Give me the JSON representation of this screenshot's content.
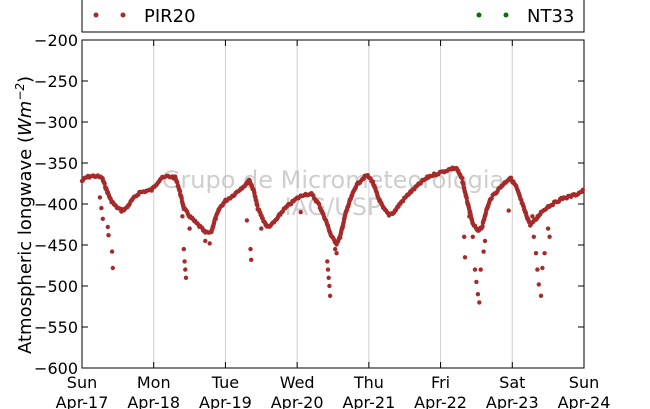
{
  "chart_data": {
    "type": "scatter",
    "ylabel_text": "Atmospheric longwave (",
    "ylabel_unit": "Wm",
    "ylabel_exp": "−2",
    "ylabel_close": ")",
    "ylim": [
      -600,
      -200
    ],
    "yticks": [
      -200,
      -250,
      -300,
      -350,
      -400,
      -450,
      -500,
      -550,
      -600
    ],
    "ytick_labels": [
      "−200",
      "−250",
      "−300",
      "−350",
      "−400",
      "−450",
      "−500",
      "−550",
      "−600"
    ],
    "xlim": [
      0,
      7
    ],
    "xticks": [
      {
        "day": "Sun",
        "date": "Apr-17"
      },
      {
        "day": "Mon",
        "date": "Apr-18"
      },
      {
        "day": "Tue",
        "date": "Apr-19"
      },
      {
        "day": "Wed",
        "date": "Apr-20"
      },
      {
        "day": "Thu",
        "date": "Apr-21"
      },
      {
        "day": "Fri",
        "date": "Apr-22"
      },
      {
        "day": "Sat",
        "date": "Apr-23"
      },
      {
        "day": "Sun",
        "date": "Apr-24"
      }
    ],
    "grid_vertical": true,
    "legend_placement": "top",
    "watermark": [
      "Grupo de Micrometeorologia",
      "IAG/USP"
    ],
    "series": [
      {
        "name": "PIR20",
        "color": "#a52a2a",
        "line_points": [
          [
            0.0,
            -372
          ],
          [
            0.05,
            -368
          ],
          [
            0.12,
            -366
          ],
          [
            0.2,
            -366
          ],
          [
            0.28,
            -368
          ],
          [
            0.33,
            -380
          ],
          [
            0.4,
            -395
          ],
          [
            0.47,
            -403
          ],
          [
            0.55,
            -408
          ],
          [
            0.62,
            -405
          ],
          [
            0.7,
            -395
          ],
          [
            0.8,
            -386
          ],
          [
            0.9,
            -384
          ],
          [
            0.97,
            -383
          ],
          [
            1.02,
            -377
          ],
          [
            1.1,
            -369
          ],
          [
            1.2,
            -366
          ],
          [
            1.3,
            -368
          ],
          [
            1.35,
            -380
          ],
          [
            1.42,
            -405
          ],
          [
            1.5,
            -415
          ],
          [
            1.58,
            -422
          ],
          [
            1.65,
            -428
          ],
          [
            1.72,
            -435
          ],
          [
            1.8,
            -435
          ],
          [
            1.85,
            -420
          ],
          [
            1.92,
            -405
          ],
          [
            2.0,
            -396
          ],
          [
            2.1,
            -390
          ],
          [
            2.2,
            -382
          ],
          [
            2.3,
            -375
          ],
          [
            2.33,
            -370
          ],
          [
            2.4,
            -385
          ],
          [
            2.45,
            -405
          ],
          [
            2.52,
            -418
          ],
          [
            2.58,
            -428
          ],
          [
            2.65,
            -425
          ],
          [
            2.72,
            -418
          ],
          [
            2.8,
            -408
          ],
          [
            2.9,
            -400
          ],
          [
            3.0,
            -393
          ],
          [
            3.1,
            -388
          ],
          [
            3.2,
            -388
          ],
          [
            3.3,
            -400
          ],
          [
            3.4,
            -420
          ],
          [
            3.48,
            -440
          ],
          [
            3.55,
            -448
          ],
          [
            3.6,
            -440
          ],
          [
            3.68,
            -410
          ],
          [
            3.75,
            -393
          ],
          [
            3.82,
            -378
          ],
          [
            3.9,
            -370
          ],
          [
            3.97,
            -365
          ],
          [
            4.05,
            -372
          ],
          [
            4.12,
            -390
          ],
          [
            4.2,
            -405
          ],
          [
            4.28,
            -413
          ],
          [
            4.35,
            -410
          ],
          [
            4.45,
            -398
          ],
          [
            4.55,
            -388
          ],
          [
            4.65,
            -380
          ],
          [
            4.75,
            -372
          ],
          [
            4.85,
            -366
          ],
          [
            4.95,
            -363
          ],
          [
            5.05,
            -360
          ],
          [
            5.15,
            -357
          ],
          [
            5.22,
            -356
          ],
          [
            5.3,
            -370
          ],
          [
            5.38,
            -400
          ],
          [
            5.45,
            -425
          ],
          [
            5.52,
            -432
          ],
          [
            5.58,
            -428
          ],
          [
            5.63,
            -410
          ],
          [
            5.7,
            -393
          ],
          [
            5.78,
            -385
          ],
          [
            5.85,
            -378
          ],
          [
            5.92,
            -372
          ],
          [
            5.97,
            -368
          ],
          [
            6.05,
            -378
          ],
          [
            6.12,
            -395
          ],
          [
            6.18,
            -410
          ],
          [
            6.25,
            -425
          ],
          [
            6.32,
            -420
          ],
          [
            6.4,
            -410
          ],
          [
            6.5,
            -403
          ],
          [
            6.6,
            -398
          ],
          [
            6.7,
            -393
          ],
          [
            6.8,
            -391
          ],
          [
            6.9,
            -388
          ],
          [
            7.0,
            -383
          ]
        ],
        "outliers": [
          [
            0.25,
            -392
          ],
          [
            0.27,
            -405
          ],
          [
            0.29,
            -418
          ],
          [
            0.36,
            -428
          ],
          [
            0.37,
            -438
          ],
          [
            0.42,
            -458
          ],
          [
            0.43,
            -478
          ],
          [
            1.4,
            -415
          ],
          [
            1.42,
            -455
          ],
          [
            1.43,
            -470
          ],
          [
            1.44,
            -480
          ],
          [
            1.45,
            -490
          ],
          [
            1.5,
            -430
          ],
          [
            1.72,
            -445
          ],
          [
            1.78,
            -448
          ],
          [
            2.35,
            -455
          ],
          [
            2.36,
            -468
          ],
          [
            2.3,
            -420
          ],
          [
            2.5,
            -430
          ],
          [
            3.05,
            -410
          ],
          [
            3.42,
            -470
          ],
          [
            3.43,
            -480
          ],
          [
            3.44,
            -490
          ],
          [
            3.45,
            -500
          ],
          [
            3.46,
            -512
          ],
          [
            3.53,
            -455
          ],
          [
            3.55,
            -460
          ],
          [
            5.33,
            -440
          ],
          [
            5.34,
            -465
          ],
          [
            5.4,
            -415
          ],
          [
            5.45,
            -440
          ],
          [
            5.48,
            -480
          ],
          [
            5.5,
            -495
          ],
          [
            5.52,
            -510
          ],
          [
            5.54,
            -520
          ],
          [
            5.56,
            -480
          ],
          [
            5.6,
            -458
          ],
          [
            5.62,
            -445
          ],
          [
            5.95,
            -408
          ],
          [
            6.28,
            -415
          ],
          [
            6.3,
            -440
          ],
          [
            6.33,
            -460
          ],
          [
            6.35,
            -480
          ],
          [
            6.37,
            -498
          ],
          [
            6.4,
            -512
          ],
          [
            6.42,
            -478
          ],
          [
            6.45,
            -460
          ],
          [
            6.5,
            -430
          ],
          [
            6.52,
            -440
          ]
        ]
      },
      {
        "name": "NT33",
        "color": "#0a6e0a",
        "line_points": [],
        "outliers": []
      }
    ]
  }
}
